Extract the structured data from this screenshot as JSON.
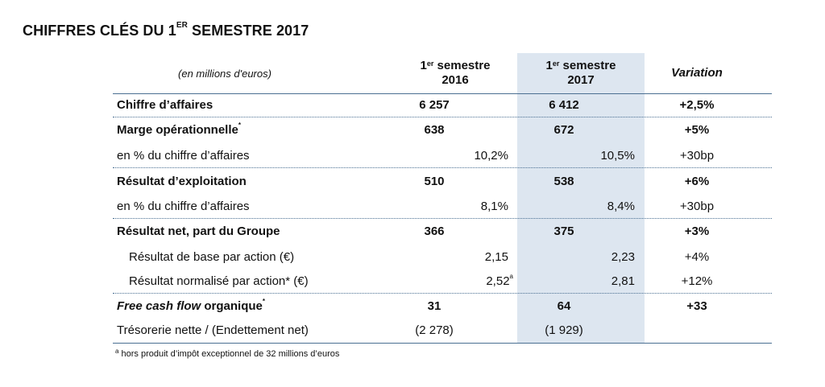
{
  "title": {
    "main": "CHIFFRES CLÉS DU 1",
    "sup": "ER",
    "rest": " SEMESTRE 2017"
  },
  "header": {
    "units": "(en millions d'euros)",
    "col2016": {
      "num": "1",
      "sup": "er",
      "word": " semestre",
      "year": "2016"
    },
    "col2017": {
      "num": "1",
      "sup": "er",
      "word": " semestre",
      "year": "2017"
    },
    "variation": "Variation"
  },
  "rows": {
    "ca": {
      "label": "Chiffre d’affaires",
      "v2016": "6 257",
      "v2017": "6 412",
      "var": "+2,5%"
    },
    "marge": {
      "label": "Marge opérationnelle",
      "mark": "*",
      "v2016": "638",
      "v2017": "672",
      "var": "+5%"
    },
    "marge_pct": {
      "label": "en % du chiffre d’affaires",
      "v2016": "10,2%",
      "v2017": "10,5%",
      "var": "+30bp"
    },
    "rex": {
      "label": "Résultat d’exploitation",
      "v2016": "510",
      "v2017": "538",
      "var": "+6%"
    },
    "rex_pct": {
      "label": "en % du chiffre d’affaires",
      "v2016": "8,1%",
      "v2017": "8,4%",
      "var": "+30bp"
    },
    "rn": {
      "label": "Résultat net, part du Groupe",
      "v2016": "366",
      "v2017": "375",
      "var": "+3%"
    },
    "bpa": {
      "label": "Résultat de base par action (€)",
      "v2016": "2,15",
      "v2017": "2,23",
      "var": "+4%"
    },
    "bpa_norm": {
      "label": "Résultat normalisé par action* (€)",
      "v2016": "2,52",
      "v2016_sup": "a",
      "v2017": "2,81",
      "var": "+12%"
    },
    "fcf": {
      "label_italic": "Free cash flow",
      "label_rest": " organique",
      "mark": "*",
      "v2016": "31",
      "v2017": "64",
      "var": "+33"
    },
    "treso": {
      "label": "Trésorerie nette / (Endettement net)",
      "v2016": "(2 278)",
      "v2017": "(1 929)",
      "var": ""
    }
  },
  "footnote": {
    "sup": "a",
    "text": " hors produit d’impôt exceptionnel de 32 millions d’euros"
  },
  "colors": {
    "highlight": "#dde6f0",
    "rule": "#4a6f92"
  }
}
